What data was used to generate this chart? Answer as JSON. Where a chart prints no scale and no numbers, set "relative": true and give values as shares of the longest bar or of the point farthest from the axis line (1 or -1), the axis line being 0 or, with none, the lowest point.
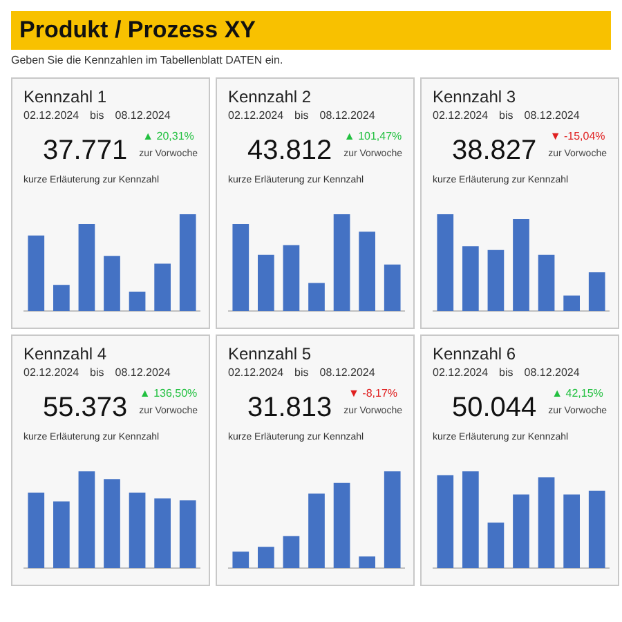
{
  "chart_data": [
    {
      "type": "other",
      "title": "Produkt / Prozess XY",
      "annotations": [
        "Geben Sie die Kennzahlen im Tabellenblatt DATEN ein."
      ]
    },
    {
      "type": "bar",
      "relative": true,
      "title": "Kennzahl 1",
      "annotations": [
        "02.12.2024",
        "bis",
        "08.12.2024",
        "37.771",
        "▲ 20,31%",
        "zur Vorwoche",
        "kurze Erläuterung zur Kennzahl"
      ],
      "categories": [
        null,
        null,
        null,
        null,
        null,
        null,
        null
      ],
      "color": "#4472c4",
      "values": [
        0.78,
        0.27,
        0.9,
        0.57,
        0.2,
        0.49,
        1
      ]
    },
    {
      "type": "bar",
      "relative": true,
      "title": "Kennzahl 2",
      "annotations": [
        "02.12.2024",
        "bis",
        "08.12.2024",
        "43.812",
        "▲ 101,47%",
        "zur Vorwoche",
        "kurze Erläuterung zur Kennzahl"
      ],
      "categories": [
        null,
        null,
        null,
        null,
        null,
        null,
        null
      ],
      "color": "#4472c4",
      "values": [
        0.9,
        0.58,
        0.68,
        0.29,
        1,
        0.82,
        0.48
      ]
    },
    {
      "type": "bar",
      "relative": true,
      "title": "Kennzahl 3",
      "annotations": [
        "02.12.2024",
        "bis",
        "08.12.2024",
        "38.827",
        "▼ -15,04%",
        "zur Vorwoche",
        "kurze Erläuterung zur Kennzahl"
      ],
      "categories": [
        null,
        null,
        null,
        null,
        null,
        null,
        null
      ],
      "color": "#4472c4",
      "values": [
        1,
        0.67,
        0.63,
        0.95,
        0.58,
        0.16,
        0.4
      ]
    },
    {
      "type": "bar",
      "relative": true,
      "title": "Kennzahl 4",
      "annotations": [
        "02.12.2024",
        "bis",
        "08.12.2024",
        "55.373",
        "▲ 136,50%",
        "zur Vorwoche",
        "kurze Erläuterung zur Kennzahl"
      ],
      "categories": [
        null,
        null,
        null,
        null,
        null,
        null,
        null
      ],
      "color": "#4472c4",
      "values": [
        0.78,
        0.69,
        1,
        0.92,
        0.78,
        0.72,
        0.7
      ]
    },
    {
      "type": "bar",
      "relative": true,
      "title": "Kennzahl 5",
      "annotations": [
        "02.12.2024",
        "bis",
        "08.12.2024",
        "31.813",
        "▼ -8,17%",
        "zur Vorwoche",
        "kurze Erläuterung zur Kennzahl"
      ],
      "categories": [
        null,
        null,
        null,
        null,
        null,
        null,
        null
      ],
      "color": "#4472c4",
      "values": [
        0.17,
        0.22,
        0.33,
        0.77,
        0.88,
        0.12,
        1
      ]
    },
    {
      "type": "bar",
      "relative": true,
      "title": "Kennzahl 6",
      "annotations": [
        "02.12.2024",
        "bis",
        "08.12.2024",
        "50.044",
        "▲ 42,15%",
        "zur Vorwoche",
        "kurze Erläuterung zur Kennzahl"
      ],
      "categories": [
        null,
        null,
        null,
        null,
        null,
        null,
        null
      ],
      "color": "#4472c4",
      "values": [
        0.96,
        1,
        0.47,
        0.76,
        0.94,
        0.76,
        0.8
      ]
    }
  ]
}
